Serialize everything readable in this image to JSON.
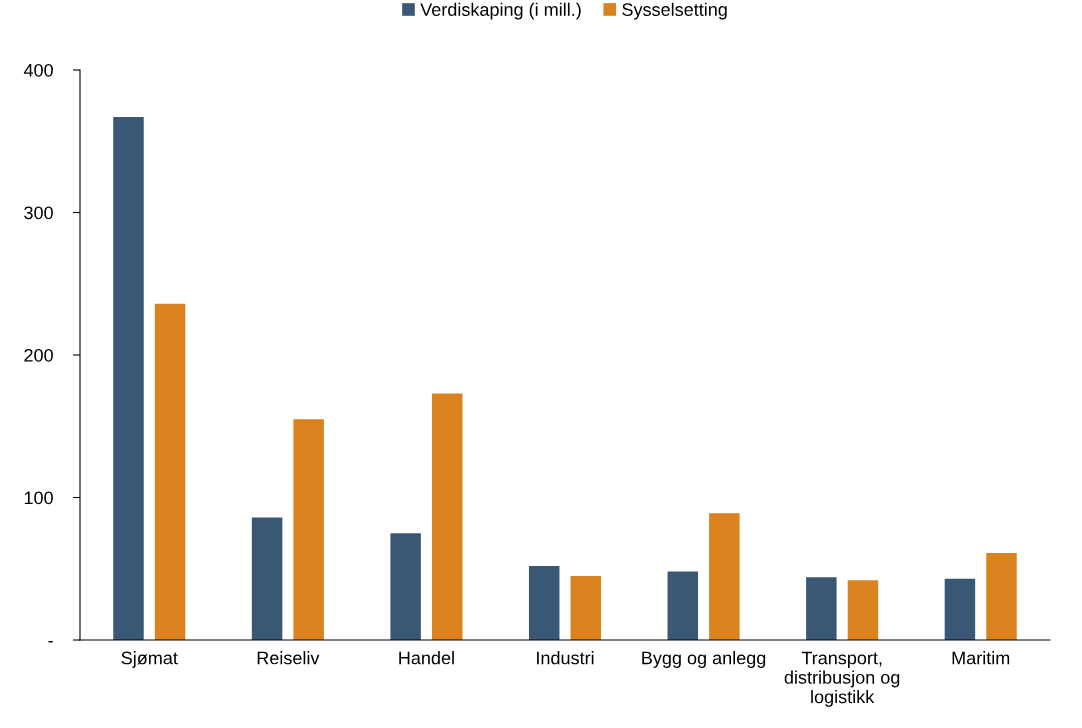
{
  "chart_data": {
    "type": "bar",
    "categories": [
      "Sjømat",
      "Reiseliv",
      "Handel",
      "Industri",
      "Bygg og anlegg",
      "Transport, distribusjon og logistikk",
      "Maritim"
    ],
    "series": [
      {
        "name": "Verdiskaping (i mill.)",
        "color": "#3a5875",
        "values": [
          367,
          86,
          75,
          52,
          48,
          44,
          43
        ]
      },
      {
        "name": "Sysselsetting",
        "color": "#d9821e",
        "values": [
          236,
          155,
          173,
          45,
          89,
          42,
          61
        ]
      }
    ],
    "ylim": [
      0,
      400
    ],
    "yticks": [
      {
        "value": 0,
        "label": "-"
      },
      100,
      200,
      300,
      400
    ],
    "legend": "top",
    "grid": false
  }
}
